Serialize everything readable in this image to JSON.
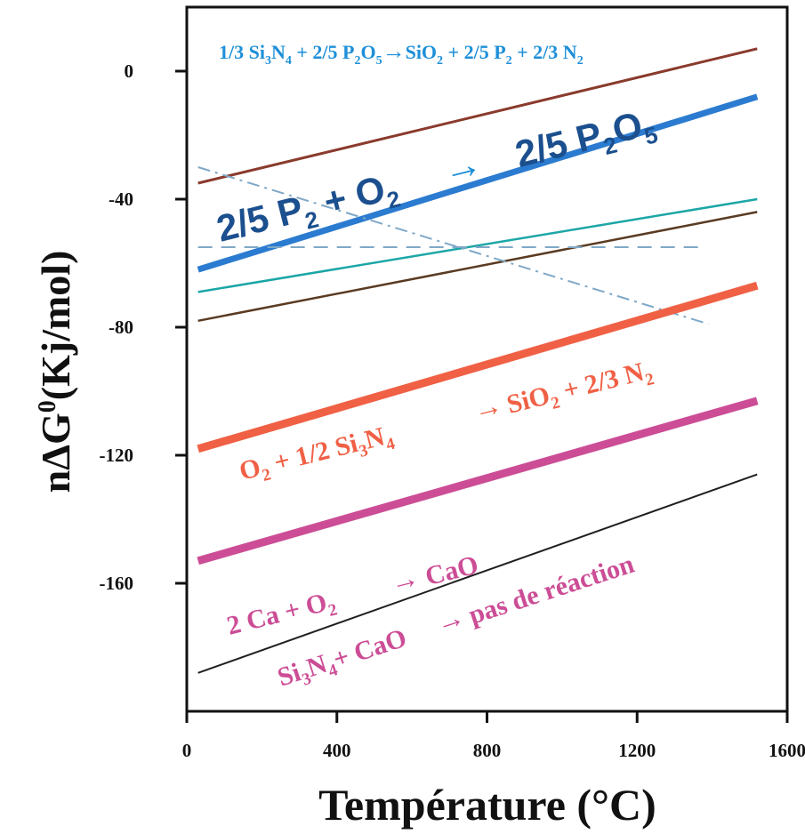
{
  "chart_data": {
    "type": "line",
    "ylabel_parts": [
      "nΔG",
      "0",
      "(Kj/mol)"
    ],
    "xlabel": "Température (°C)",
    "xlim": [
      0,
      1600
    ],
    "ylim": [
      -200,
      20
    ],
    "xticks": [
      0,
      400,
      800,
      1200,
      1600
    ],
    "yticks": [
      0,
      -40,
      -80,
      -120,
      -160
    ],
    "xtick_labels": [
      "0",
      "400",
      "800",
      "1200",
      "1600"
    ],
    "ytick_labels": [
      "0",
      "-40",
      "-80",
      "-120",
      "-160"
    ],
    "grid": false,
    "series": [
      {
        "x": [
          30,
          1520
        ],
        "y": [
          -35,
          7
        ],
        "color": "#8a3a2c",
        "width": 3,
        "dash": ""
      },
      {
        "x": [
          30,
          1520
        ],
        "y": [
          -62,
          -8
        ],
        "color": "#2b7bd0",
        "width": 7,
        "dash": ""
      },
      {
        "x": [
          30,
          1520
        ],
        "y": [
          -69,
          -40
        ],
        "color": "#1ca6a6",
        "width": 2.5,
        "dash": ""
      },
      {
        "x": [
          30,
          1520
        ],
        "y": [
          -78,
          -44
        ],
        "color": "#5a3b22",
        "width": 2.5,
        "dash": ""
      },
      {
        "x": [
          30,
          1370
        ],
        "y": [
          -55,
          -55
        ],
        "color": "#7fa8c7",
        "width": 2,
        "dash": "16,10"
      },
      {
        "x": [
          30,
          1390
        ],
        "y": [
          -30,
          -79
        ],
        "color": "#7fa8c7",
        "width": 2,
        "dash": "14,6,3,6"
      },
      {
        "x": [
          30,
          1520
        ],
        "y": [
          -118,
          -67
        ],
        "color": "#f06045",
        "width": 9,
        "dash": ""
      },
      {
        "x": [
          30,
          1520
        ],
        "y": [
          -153,
          -103
        ],
        "color": "#cc4d96",
        "width": 9,
        "dash": ""
      },
      {
        "x": [
          30,
          1520
        ],
        "y": [
          -188,
          -126
        ],
        "color": "#1f1f1f",
        "width": 2,
        "dash": ""
      }
    ]
  },
  "annotations": {
    "top_reaction": {
      "color": "#1e8fd8",
      "parts": [
        "1/3 Si",
        "3",
        "N",
        "4",
        " + 2/5 P",
        "2",
        "O",
        "5",
        "→",
        "SiO",
        "2",
        " + 2/5 P",
        "2",
        " + 2/3 N",
        "2"
      ]
    },
    "p2o5_reaction": {
      "color": "#1b4f8e",
      "left_parts": [
        "2/5 P",
        "2",
        " + O",
        "2"
      ],
      "arrow": "→",
      "right_parts": [
        "2/5 P",
        "2",
        "O",
        "5"
      ]
    },
    "si3n4_reaction": {
      "color": "#f06045",
      "left_parts": [
        "O",
        "2",
        " + 1/2 Si",
        "3",
        "N",
        "4"
      ],
      "arrow": "→",
      "right_parts": [
        "SiO",
        "2",
        " + 2/3 N",
        "2"
      ]
    },
    "cao_reaction": {
      "color": "#cc4d96",
      "left_parts": [
        "2 Ca + O",
        "2"
      ],
      "arrow": "→",
      "right_parts": [
        "CaO"
      ]
    },
    "no_reaction": {
      "color": "#cc4d96",
      "left_parts": [
        "Si",
        "3",
        "N",
        "4",
        "+ CaO"
      ],
      "arrow": "→",
      "right_parts": [
        "pas de réaction"
      ]
    }
  }
}
